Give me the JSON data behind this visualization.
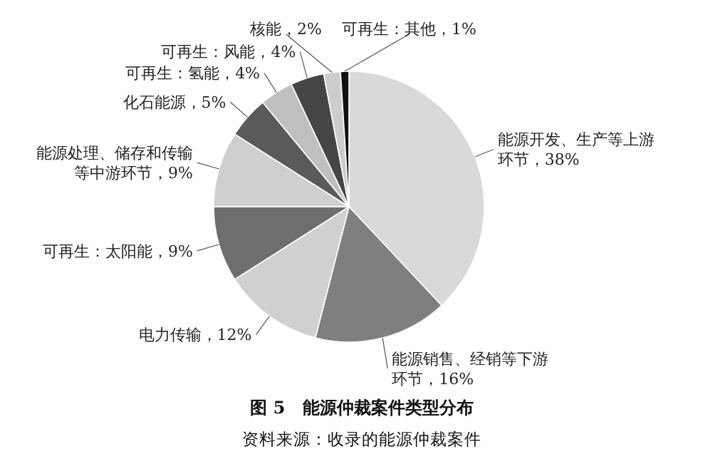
{
  "chart_data": {
    "type": "pie",
    "title": "图 5　能源仲裁案件类型分布",
    "categories": [
      "能源开发、生产等上游环节",
      "能源销售、经销等下游环节",
      "电力传输",
      "可再生：太阳能",
      "能源处理、储存和传输等中游环节",
      "化石能源",
      "可再生：氢能",
      "可再生：风能",
      "核能",
      "可再生：其他"
    ],
    "values": [
      38,
      16,
      12,
      9,
      9,
      5,
      4,
      4,
      2,
      1
    ],
    "value_labels": [
      "，38%",
      "，16%",
      "，12%",
      "，9%",
      "，9%",
      "，5%",
      "，4%",
      "，4%",
      "，2%",
      "，1%"
    ],
    "colors": [
      "#d9d9d9",
      "#7f7f7f",
      "#d0d0d0",
      "#6e6e6e",
      "#cfcfcf",
      "#5a5a5a",
      "#bfbfbf",
      "#454545",
      "#cccccc",
      "#111111"
    ],
    "annotations": [
      "资料来源：收录的能源仲裁案件"
    ]
  }
}
